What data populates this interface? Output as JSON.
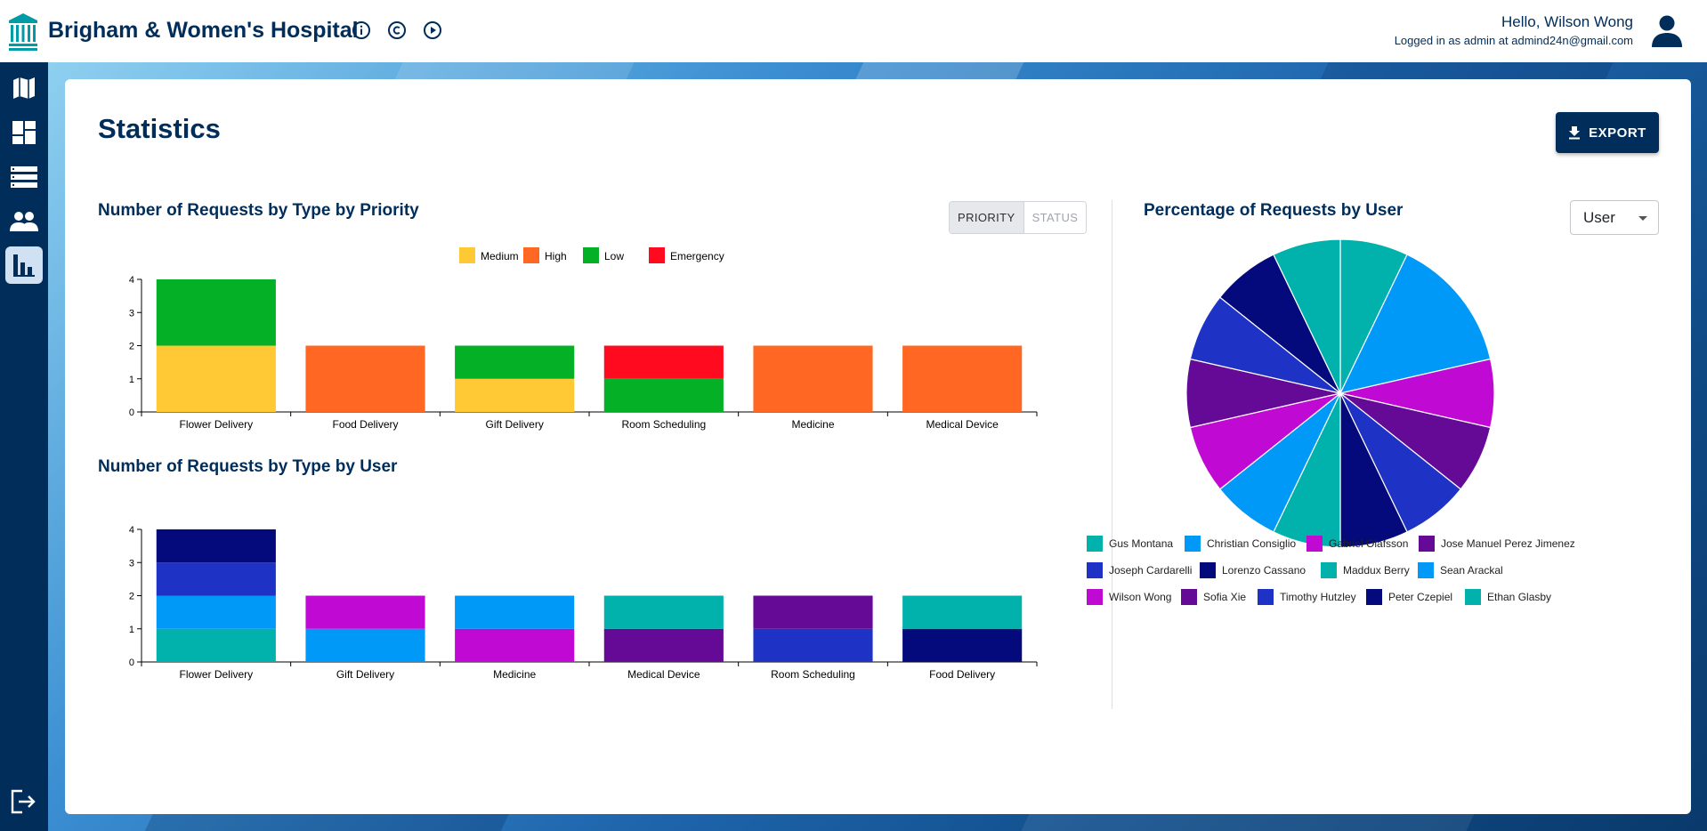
{
  "header": {
    "brand": "Brigham & Women's Hospital",
    "greeting": "Hello, Wilson Wong",
    "logged_in": "Logged in as admin at admind24n@gmail.com",
    "icons": [
      "info-icon",
      "copyright-icon",
      "play-icon",
      "user-avatar-icon"
    ]
  },
  "sidebar": {
    "items": [
      {
        "name": "map",
        "icon": "map-icon"
      },
      {
        "name": "dashboard",
        "icon": "dashboard-icon"
      },
      {
        "name": "requests",
        "icon": "list-icon"
      },
      {
        "name": "employees",
        "icon": "people-icon"
      },
      {
        "name": "statistics",
        "icon": "bar-chart-icon",
        "active": true
      }
    ],
    "logout_icon": "logout-icon"
  },
  "main": {
    "title": "Statistics",
    "export_label": "EXPORT",
    "toggle": {
      "priority": "PRIORITY",
      "status": "STATUS",
      "selected": "PRIORITY"
    },
    "user_select": "User"
  },
  "chart_data": [
    {
      "type": "bar",
      "stacked": true,
      "title": "Number of Requests by Type by Priority",
      "categories": [
        "Flower Delivery",
        "Food Delivery",
        "Gift Delivery",
        "Room Scheduling",
        "Medicine",
        "Medical Device"
      ],
      "ylim": [
        0,
        4
      ],
      "yticks": [
        0,
        1,
        2,
        3,
        4
      ],
      "legend_position": "top-center",
      "series": [
        {
          "name": "Medium",
          "color": "#ffc935",
          "values": [
            2,
            0,
            1,
            0,
            0,
            0
          ]
        },
        {
          "name": "High",
          "color": "#ff6723",
          "values": [
            0,
            2,
            0,
            0,
            2,
            2
          ]
        },
        {
          "name": "Low",
          "color": "#04b126",
          "values": [
            2,
            0,
            1,
            1,
            0,
            0
          ]
        },
        {
          "name": "Emergency",
          "color": "#ff0a1e",
          "values": [
            0,
            0,
            0,
            1,
            0,
            0
          ]
        }
      ]
    },
    {
      "type": "bar",
      "stacked": true,
      "title": "Number of Requests by Type by User",
      "categories": [
        "Flower Delivery",
        "Gift Delivery",
        "Medicine",
        "Medical Device",
        "Room Scheduling",
        "Food Delivery"
      ],
      "ylim": [
        0,
        4
      ],
      "yticks": [
        0,
        1,
        2,
        3,
        4
      ],
      "segments": [
        [
          {
            "color": "#00b1ac",
            "value": 1
          },
          {
            "color": "#0099f7",
            "value": 1
          },
          {
            "color": "#1e33c6",
            "value": 1
          },
          {
            "color": "#040a7c",
            "value": 1
          }
        ],
        [
          {
            "color": "#0099f7",
            "value": 1
          },
          {
            "color": "#c00ad4",
            "value": 1
          }
        ],
        [
          {
            "color": "#c00ad4",
            "value": 1
          },
          {
            "color": "#0099f7",
            "value": 1
          }
        ],
        [
          {
            "color": "#640a96",
            "value": 1
          },
          {
            "color": "#00b1ac",
            "value": 1
          }
        ],
        [
          {
            "color": "#1e33c6",
            "value": 1
          },
          {
            "color": "#640a96",
            "value": 1
          }
        ],
        [
          {
            "color": "#040a7c",
            "value": 1
          },
          {
            "color": "#00b1ac",
            "value": 1
          }
        ]
      ]
    },
    {
      "type": "pie",
      "title": "Percentage of Requests by User",
      "legend_position": "bottom",
      "slices": [
        {
          "color": "#00b1ac",
          "value": 1
        },
        {
          "color": "#0099f7",
          "value": 2
        },
        {
          "color": "#c00ad4",
          "value": 1
        },
        {
          "color": "#640a96",
          "value": 1
        },
        {
          "color": "#1e33c6",
          "value": 1
        },
        {
          "color": "#040a7c",
          "value": 1
        },
        {
          "color": "#00b1ac",
          "value": 1
        },
        {
          "color": "#0099f7",
          "value": 1
        },
        {
          "color": "#c00ad4",
          "value": 1
        },
        {
          "color": "#640a96",
          "value": 1
        },
        {
          "color": "#1e33c6",
          "value": 1
        },
        {
          "color": "#040a7c",
          "value": 1
        },
        {
          "color": "#00b1ac",
          "value": 1
        }
      ],
      "legend": [
        {
          "name": "Gus Montana",
          "color": "#00b1ac"
        },
        {
          "name": "Christian Consiglio",
          "color": "#0099f7"
        },
        {
          "name": "Gabriel Olafsson",
          "color": "#c00ad4"
        },
        {
          "name": "Jose Manuel Perez Jimenez",
          "color": "#640a96"
        },
        {
          "name": "Joseph Cardarelli",
          "color": "#1e33c6"
        },
        {
          "name": "Lorenzo Cassano",
          "color": "#040a7c"
        },
        {
          "name": "Maddux Berry",
          "color": "#00b1ac"
        },
        {
          "name": "Sean Arackal",
          "color": "#0099f7"
        },
        {
          "name": "Wilson Wong",
          "color": "#c00ad4"
        },
        {
          "name": "Sofia Xie",
          "color": "#640a96"
        },
        {
          "name": "Timothy Hutzley",
          "color": "#1e33c6"
        },
        {
          "name": "Peter Czepiel",
          "color": "#040a7c"
        },
        {
          "name": "Ethan Glasby",
          "color": "#00b1ac"
        }
      ]
    }
  ]
}
